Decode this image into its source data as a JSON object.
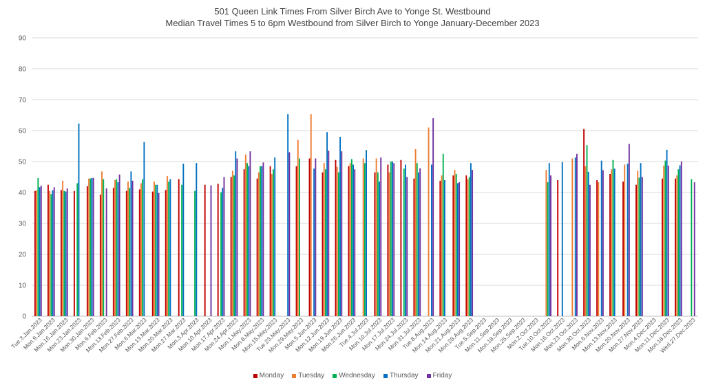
{
  "chart_data": {
    "type": "bar",
    "title": "501 Queen Link Times From Silver Birch Ave to Yonge St. Westbound",
    "subtitle": "Median Travel Times 5 to 6pm Westbound from Silver Birch to Yonge January-December 2023",
    "xlabel": "",
    "ylabel": "",
    "ylim": [
      0,
      90
    ],
    "yticks": [
      0,
      10,
      20,
      30,
      40,
      50,
      60,
      70,
      80,
      90
    ],
    "grid": true,
    "legend_position": "bottom",
    "categories": [
      "Tue.3.Jan.2023",
      "Mon.9.Jan.2023",
      "Mon.16.Jan.2023",
      "Mon.23.Jan.2023",
      "Mon.30.Jan.2023",
      "Mon.6.Feb.2023",
      "Mon.13.Feb.2023",
      "Mon.27.Feb.2023",
      "Mon.6.Mar.2023",
      "Mon.13.Mar.2023",
      "Mon.20.Mar.2023",
      "Mon.27.Mar.2023",
      "Mon.3.Apr.2023",
      "Mon.10.Apr.2023",
      "Mon.17.Apr.2023",
      "Mon.24.Apr.2023",
      "Mon.1.May.2023",
      "Mon.8.May.2023",
      "Mon.15.May.2023",
      "Tue.23.May.2023",
      "Mon.29.May.2023",
      "Mon.5.Jun.2023",
      "Mon.12.Jun.2023",
      "Mon.19.Jun.2023",
      "Mon.26.Jun.2023",
      "Tue.4.Jul.2023",
      "Mon.10.Jul.2023",
      "Mon.17.Jul.2023",
      "Mon.24.Jul.2023",
      "Mon.31.Jul.2023",
      "Tue.8.Aug.2023",
      "Mon.14.Aug.2023",
      "Mon.21.Aug.2023",
      "Mon.28.Aug.2023",
      "Tue.5.Sep.2023",
      "Mon.11.Sep.2023",
      "Mon.18.Sep.2023",
      "Mon.25.Sep.2023",
      "Mon.2.Oct.2023",
      "Tue.10.Oct.2023",
      "Mon.16.Oct.2023",
      "Mon.23.Oct.2023",
      "Mon.30.Oct.2023",
      "Mon.6.Nov.2023",
      "Mon.13.Nov.2023",
      "Mon.20.Nov.2023",
      "Mon.27.Nov.2023",
      "Mon.4.Dec.2023",
      "Mon.11.Dec.2023",
      "Mon.18.Dec.2023",
      "Wed.27.Dec.2023"
    ],
    "series": [
      {
        "name": "Monday",
        "color": "#c00000",
        "values": [
          40.5,
          42.5,
          40.8,
          40.5,
          42.0,
          39.3,
          41.5,
          40.5,
          41.0,
          40.3,
          40.8,
          44.3,
          null,
          42.5,
          42.8,
          45.0,
          47.5,
          44.5,
          48.5,
          null,
          48.5,
          51.0,
          46.5,
          50.5,
          48.5,
          null,
          46.5,
          49.0,
          50.5,
          44.5,
          null,
          43.8,
          45.5,
          45.5,
          null,
          null,
          null,
          null,
          null,
          null,
          44.0,
          null,
          60.5,
          44.0,
          46.0,
          43.5,
          42.5,
          null,
          44.5,
          44.5,
          null
        ]
      },
      {
        "name": "Tuesday",
        "color": "#ed7d31",
        "values": [
          40.7,
          40.5,
          43.8,
          null,
          44.5,
          46.8,
          44.0,
          43.5,
          43.0,
          43.5,
          45.3,
          null,
          null,
          null,
          null,
          47.0,
          52.3,
          46.5,
          46.0,
          null,
          57.0,
          65.3,
          49.5,
          48.3,
          49.5,
          51.0,
          51.0,
          46.5,
          null,
          54.0,
          61.0,
          45.5,
          47.3,
          44.3,
          null,
          null,
          null,
          null,
          null,
          47.3,
          null,
          51.0,
          48.5,
          43.3,
          47.5,
          49.0,
          47.0,
          null,
          48.7,
          45.5,
          null
        ]
      },
      {
        "name": "Wednesday",
        "color": "#00b050",
        "values": [
          44.7,
          39.5,
          40.5,
          43.0,
          44.5,
          44.3,
          44.3,
          41.5,
          44.3,
          42.5,
          43.5,
          42.5,
          40.5,
          null,
          40.0,
          45.5,
          49.5,
          48.5,
          47.5,
          null,
          51.0,
          null,
          47.5,
          46.5,
          50.8,
          49.5,
          46.5,
          50.0,
          47.7,
          49.5,
          null,
          52.5,
          46.0,
          45.0,
          null,
          null,
          null,
          null,
          null,
          43.3,
          null,
          null,
          55.3,
          null,
          50.5,
          null,
          44.8,
          null,
          50.3,
          47.5,
          44.3
        ]
      },
      {
        "name": "Thursday",
        "color": "#0070c0",
        "values": [
          41.7,
          40.7,
          40.3,
          62.3,
          44.7,
          null,
          43.3,
          46.8,
          56.3,
          42.5,
          44.3,
          49.3,
          49.5,
          null,
          41.5,
          53.3,
          48.5,
          48.5,
          51.3,
          65.3,
          null,
          47.7,
          59.5,
          58.0,
          49.0,
          53.7,
          43.5,
          50.0,
          49.0,
          46.5,
          49.0,
          44.0,
          43.0,
          49.5,
          null,
          null,
          null,
          null,
          null,
          49.5,
          49.8,
          51.3,
          46.7,
          50.3,
          47.7,
          49.3,
          49.5,
          null,
          53.8,
          48.8,
          null
        ]
      },
      {
        "name": "Friday",
        "color": "#7030a0",
        "values": [
          42.2,
          41.7,
          41.3,
          null,
          44.7,
          41.3,
          45.8,
          43.8,
          null,
          39.8,
          null,
          null,
          null,
          42.3,
          45.0,
          51.0,
          53.3,
          49.7,
          null,
          53.0,
          null,
          51.0,
          53.5,
          53.3,
          47.5,
          null,
          51.3,
          49.5,
          45.0,
          47.8,
          64.0,
          null,
          43.3,
          47.3,
          null,
          null,
          null,
          null,
          null,
          45.5,
          null,
          52.5,
          42.5,
          47.2,
          null,
          55.7,
          45.0,
          null,
          48.7,
          50.0,
          43.3
        ]
      }
    ]
  }
}
